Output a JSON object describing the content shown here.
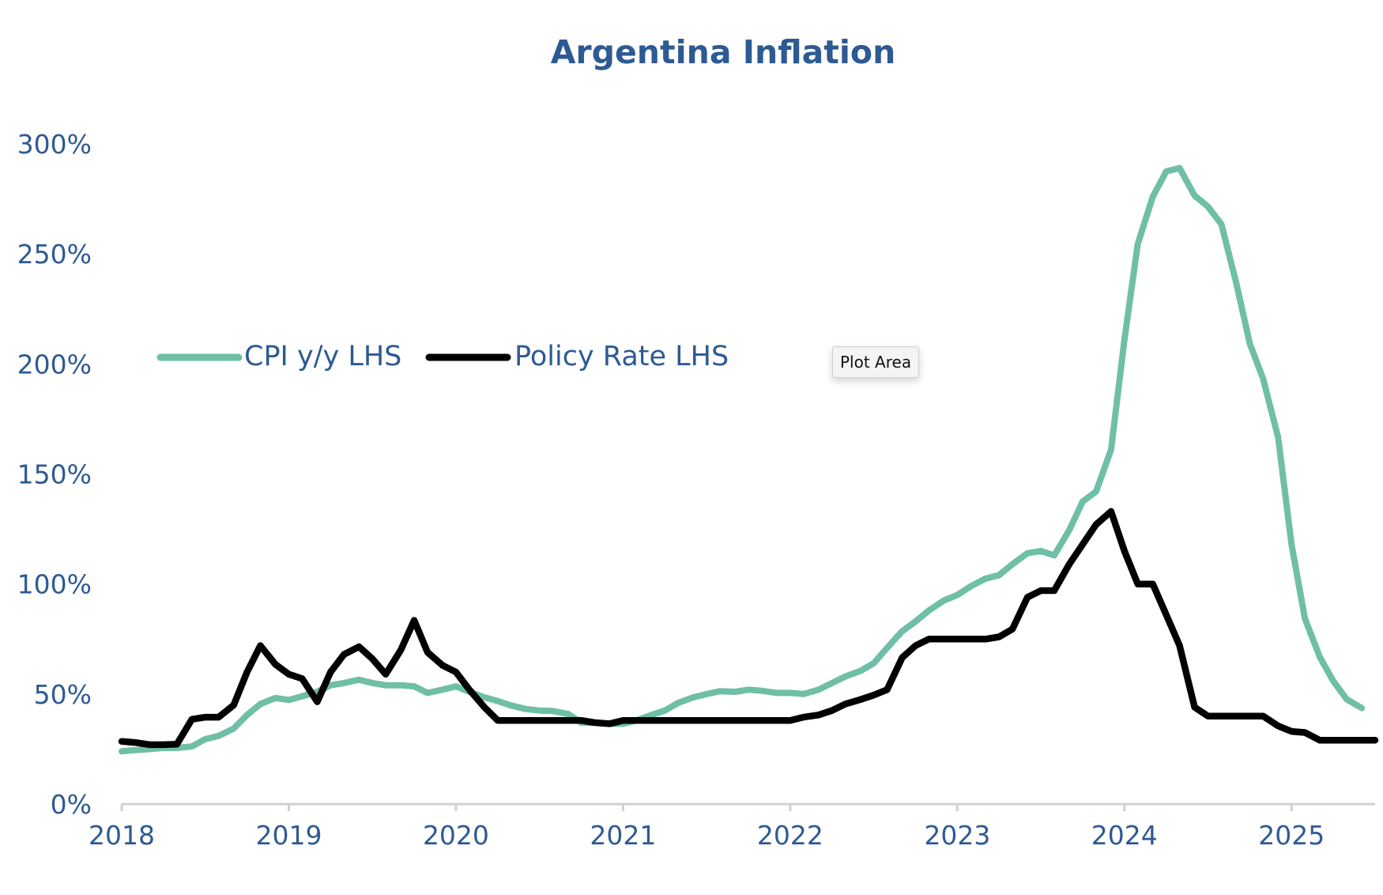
{
  "colors": {
    "title": "#2E5A93",
    "cpi": "#6FBFA6",
    "policy": "#000000",
    "axis": "#d0d0d0"
  },
  "tooltip": {
    "text": "Plot Area"
  },
  "chart_data": {
    "type": "line",
    "title": "Argentina Inflation",
    "xlabel": "",
    "ylabel": "",
    "ylim": [
      0,
      3.0
    ],
    "xlim": [
      2018.0,
      2025.5
    ],
    "yticks": [
      {
        "v": 0,
        "label": "0%"
      },
      {
        "v": 0.5,
        "label": "50%"
      },
      {
        "v": 1.0,
        "label": "100%"
      },
      {
        "v": 1.5,
        "label": "150%"
      },
      {
        "v": 2.0,
        "label": "200%"
      },
      {
        "v": 2.5,
        "label": "250%"
      },
      {
        "v": 3.0,
        "label": "300%"
      }
    ],
    "xticks": [
      {
        "v": 2018,
        "label": "2018"
      },
      {
        "v": 2019,
        "label": "2019"
      },
      {
        "v": 2020,
        "label": "2020"
      },
      {
        "v": 2021,
        "label": "2021"
      },
      {
        "v": 2022,
        "label": "2022"
      },
      {
        "v": 2023,
        "label": "2023"
      },
      {
        "v": 2024,
        "label": "2024"
      },
      {
        "v": 2025,
        "label": "2025"
      }
    ],
    "legend": "top-left",
    "series": [
      {
        "name": "CPI y/y LHS",
        "color": "#6FBFA6",
        "points": [
          [
            2018.0,
            0.24
          ],
          [
            2018.08,
            0.245
          ],
          [
            2018.17,
            0.25
          ],
          [
            2018.25,
            0.255
          ],
          [
            2018.33,
            0.255
          ],
          [
            2018.42,
            0.262
          ],
          [
            2018.5,
            0.295
          ],
          [
            2018.58,
            0.31
          ],
          [
            2018.67,
            0.343
          ],
          [
            2018.75,
            0.405
          ],
          [
            2018.83,
            0.455
          ],
          [
            2018.92,
            0.482
          ],
          [
            2019.0,
            0.473
          ],
          [
            2019.08,
            0.49
          ],
          [
            2019.17,
            0.51
          ],
          [
            2019.25,
            0.54
          ],
          [
            2019.33,
            0.55
          ],
          [
            2019.42,
            0.565
          ],
          [
            2019.5,
            0.55
          ],
          [
            2019.58,
            0.54
          ],
          [
            2019.67,
            0.54
          ],
          [
            2019.75,
            0.535
          ],
          [
            2019.83,
            0.505
          ],
          [
            2019.92,
            0.52
          ],
          [
            2020.0,
            0.535
          ],
          [
            2020.08,
            0.51
          ],
          [
            2020.17,
            0.485
          ],
          [
            2020.25,
            0.468
          ],
          [
            2020.33,
            0.448
          ],
          [
            2020.42,
            0.432
          ],
          [
            2020.5,
            0.425
          ],
          [
            2020.58,
            0.423
          ],
          [
            2020.67,
            0.41
          ],
          [
            2020.75,
            0.37
          ],
          [
            2020.83,
            0.37
          ],
          [
            2020.92,
            0.365
          ],
          [
            2021.0,
            0.365
          ],
          [
            2021.08,
            0.38
          ],
          [
            2021.17,
            0.405
          ],
          [
            2021.25,
            0.425
          ],
          [
            2021.33,
            0.46
          ],
          [
            2021.42,
            0.485
          ],
          [
            2021.5,
            0.5
          ],
          [
            2021.58,
            0.513
          ],
          [
            2021.67,
            0.51
          ],
          [
            2021.75,
            0.52
          ],
          [
            2021.83,
            0.515
          ],
          [
            2021.92,
            0.505
          ],
          [
            2022.0,
            0.505
          ],
          [
            2022.08,
            0.5
          ],
          [
            2022.17,
            0.52
          ],
          [
            2022.25,
            0.55
          ],
          [
            2022.33,
            0.58
          ],
          [
            2022.42,
            0.605
          ],
          [
            2022.5,
            0.64
          ],
          [
            2022.58,
            0.71
          ],
          [
            2022.67,
            0.785
          ],
          [
            2022.75,
            0.83
          ],
          [
            2022.83,
            0.88
          ],
          [
            2022.92,
            0.925
          ],
          [
            2023.0,
            0.95
          ],
          [
            2023.08,
            0.99
          ],
          [
            2023.17,
            1.025
          ],
          [
            2023.25,
            1.04
          ],
          [
            2023.33,
            1.09
          ],
          [
            2023.42,
            1.14
          ],
          [
            2023.5,
            1.15
          ],
          [
            2023.58,
            1.13
          ],
          [
            2023.67,
            1.245
          ],
          [
            2023.75,
            1.375
          ],
          [
            2023.83,
            1.42
          ],
          [
            2023.92,
            1.61
          ],
          [
            2024.0,
            2.11
          ],
          [
            2024.08,
            2.545
          ],
          [
            2024.17,
            2.76
          ],
          [
            2024.25,
            2.875
          ],
          [
            2024.33,
            2.89
          ],
          [
            2024.42,
            2.765
          ],
          [
            2024.5,
            2.715
          ],
          [
            2024.58,
            2.635
          ],
          [
            2024.67,
            2.365
          ],
          [
            2024.75,
            2.093
          ],
          [
            2024.83,
            1.933
          ],
          [
            2024.92,
            1.666
          ],
          [
            2025.0,
            1.179
          ],
          [
            2025.08,
            0.843
          ],
          [
            2025.17,
            0.667
          ],
          [
            2025.25,
            0.559
          ],
          [
            2025.33,
            0.476
          ],
          [
            2025.42,
            0.436
          ]
        ]
      },
      {
        "name": "Policy Rate LHS",
        "color": "#000000",
        "points": [
          [
            2018.0,
            0.285
          ],
          [
            2018.08,
            0.28
          ],
          [
            2018.17,
            0.27
          ],
          [
            2018.25,
            0.27
          ],
          [
            2018.33,
            0.272
          ],
          [
            2018.42,
            0.385
          ],
          [
            2018.5,
            0.395
          ],
          [
            2018.58,
            0.395
          ],
          [
            2018.67,
            0.45
          ],
          [
            2018.75,
            0.6
          ],
          [
            2018.83,
            0.72
          ],
          [
            2018.92,
            0.635
          ],
          [
            2019.0,
            0.59
          ],
          [
            2019.08,
            0.57
          ],
          [
            2019.17,
            0.465
          ],
          [
            2019.25,
            0.6
          ],
          [
            2019.33,
            0.68
          ],
          [
            2019.42,
            0.715
          ],
          [
            2019.5,
            0.66
          ],
          [
            2019.58,
            0.59
          ],
          [
            2019.67,
            0.7
          ],
          [
            2019.75,
            0.835
          ],
          [
            2019.83,
            0.69
          ],
          [
            2019.92,
            0.63
          ],
          [
            2020.0,
            0.6
          ],
          [
            2020.08,
            0.52
          ],
          [
            2020.17,
            0.44
          ],
          [
            2020.25,
            0.38
          ],
          [
            2020.33,
            0.38
          ],
          [
            2020.42,
            0.38
          ],
          [
            2020.5,
            0.38
          ],
          [
            2020.58,
            0.38
          ],
          [
            2020.67,
            0.38
          ],
          [
            2020.75,
            0.38
          ],
          [
            2020.83,
            0.37
          ],
          [
            2020.92,
            0.365
          ],
          [
            2021.0,
            0.38
          ],
          [
            2021.08,
            0.38
          ],
          [
            2021.17,
            0.38
          ],
          [
            2021.25,
            0.38
          ],
          [
            2021.33,
            0.38
          ],
          [
            2021.42,
            0.38
          ],
          [
            2021.5,
            0.38
          ],
          [
            2021.58,
            0.38
          ],
          [
            2021.67,
            0.38
          ],
          [
            2021.75,
            0.38
          ],
          [
            2021.83,
            0.38
          ],
          [
            2021.92,
            0.38
          ],
          [
            2022.0,
            0.38
          ],
          [
            2022.08,
            0.395
          ],
          [
            2022.17,
            0.405
          ],
          [
            2022.25,
            0.425
          ],
          [
            2022.33,
            0.455
          ],
          [
            2022.42,
            0.475
          ],
          [
            2022.5,
            0.495
          ],
          [
            2022.58,
            0.52
          ],
          [
            2022.67,
            0.665
          ],
          [
            2022.75,
            0.72
          ],
          [
            2022.83,
            0.75
          ],
          [
            2022.92,
            0.75
          ],
          [
            2023.0,
            0.75
          ],
          [
            2023.08,
            0.75
          ],
          [
            2023.17,
            0.75
          ],
          [
            2023.25,
            0.76
          ],
          [
            2023.33,
            0.795
          ],
          [
            2023.42,
            0.94
          ],
          [
            2023.5,
            0.97
          ],
          [
            2023.58,
            0.97
          ],
          [
            2023.67,
            1.09
          ],
          [
            2023.75,
            1.18
          ],
          [
            2023.83,
            1.27
          ],
          [
            2023.92,
            1.33
          ],
          [
            2024.0,
            1.15
          ],
          [
            2024.08,
            1.0
          ],
          [
            2024.17,
            1.0
          ],
          [
            2024.25,
            0.86
          ],
          [
            2024.33,
            0.72
          ],
          [
            2024.42,
            0.44
          ],
          [
            2024.5,
            0.4
          ],
          [
            2024.58,
            0.4
          ],
          [
            2024.67,
            0.4
          ],
          [
            2024.75,
            0.4
          ],
          [
            2024.83,
            0.4
          ],
          [
            2024.92,
            0.355
          ],
          [
            2025.0,
            0.33
          ],
          [
            2025.08,
            0.325
          ],
          [
            2025.17,
            0.29
          ],
          [
            2025.25,
            0.29
          ],
          [
            2025.33,
            0.29
          ],
          [
            2025.42,
            0.29
          ],
          [
            2025.5,
            0.29
          ]
        ]
      }
    ]
  }
}
